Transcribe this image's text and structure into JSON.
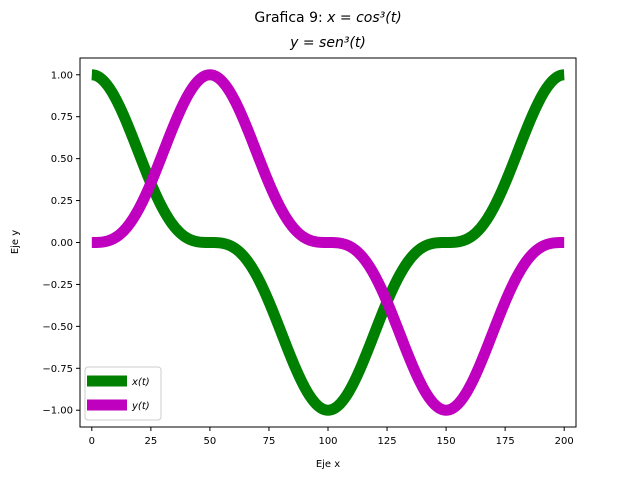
{
  "chart_data": {
    "type": "line",
    "title_line1_prefix": "Grafica 9: ",
    "title_line1_math": "x = cos³(t)",
    "title_line2_math": "y = sen³(t)",
    "xlabel": "Eje x",
    "ylabel": "Eje y",
    "xlim": [
      -5,
      205
    ],
    "ylim": [
      -1.1,
      1.1
    ],
    "xticks": [
      "0",
      "25",
      "50",
      "75",
      "100",
      "125",
      "150",
      "175",
      "200"
    ],
    "xtick_values": [
      0,
      25,
      50,
      75,
      100,
      125,
      150,
      175,
      200
    ],
    "yticks": [
      "−1.00",
      "−0.75",
      "−0.50",
      "−0.25",
      "0.00",
      "0.25",
      "0.50",
      "0.75",
      "1.00"
    ],
    "ytick_values": [
      -1.0,
      -0.75,
      -0.5,
      -0.25,
      0.0,
      0.25,
      0.5,
      0.75,
      1.0
    ],
    "x_range": [
      0,
      200
    ],
    "period": 200,
    "legend_position": "lower-left",
    "series": [
      {
        "name": "x(t)",
        "function": "cos^3",
        "color": "#008000"
      },
      {
        "name": "y(t)",
        "function": "sin^3",
        "color": "#bf00bf"
      }
    ]
  }
}
